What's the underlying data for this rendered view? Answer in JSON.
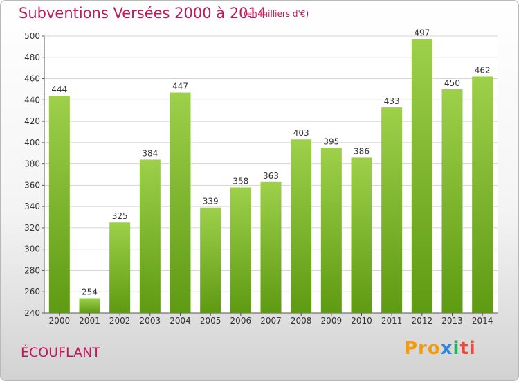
{
  "header": {
    "title": "Subventions Versées 2000 à 2014",
    "subtitle": "(en milliers d'€)"
  },
  "footer": {
    "commune": "ÉCOUFLANT",
    "logo": [
      "Pro",
      "x",
      "i",
      "ti"
    ]
  },
  "colors": {
    "bar_light": "#9ed04a",
    "bar_dark": "#5e9a12",
    "text_accent": "#c2185b"
  },
  "chart_data": {
    "type": "bar",
    "title": "Subventions Versées 2000 à 2014",
    "subtitle": "(en milliers d'€)",
    "categories": [
      "2000",
      "2001",
      "2002",
      "2003",
      "2004",
      "2005",
      "2006",
      "2007",
      "2008",
      "2009",
      "2010",
      "2011",
      "2012",
      "2013",
      "2014"
    ],
    "values": [
      444,
      254,
      325,
      384,
      447,
      339,
      358,
      363,
      403,
      395,
      386,
      433,
      497,
      450,
      462
    ],
    "ylim": [
      240,
      500
    ],
    "yticks": [
      240,
      260,
      280,
      300,
      320,
      340,
      360,
      380,
      400,
      420,
      440,
      460,
      480,
      500
    ],
    "grid": true,
    "legend": "none"
  }
}
